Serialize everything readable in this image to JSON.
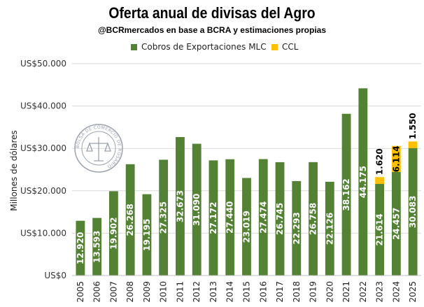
{
  "colors": {
    "series1": "#548235",
    "series2": "#FFC000",
    "grid": "#d9d9d9",
    "axis": "#bfbfbf"
  },
  "watermark": {
    "text": "BOLSA DE COMERCIO DE ROSARIO"
  },
  "chart_data": {
    "type": "bar",
    "stacked": true,
    "title": "Oferta anual de divisas del Agro",
    "subtitle": "@BCRmercados en base a BCRA y estimaciones propias",
    "ylabel": "Millones de dólares",
    "xlabel": "",
    "ylim": [
      0,
      50000
    ],
    "yticks": [
      0,
      10000,
      20000,
      30000,
      40000,
      50000
    ],
    "ytick_labels": [
      "US$0",
      "US$10.000",
      "US$20.000",
      "US$30.000",
      "US$40.000",
      "US$50.000"
    ],
    "grid": true,
    "legend_position": "top",
    "categories": [
      "2005",
      "2006",
      "2007",
      "2008",
      "2009",
      "2010",
      "2011",
      "2012",
      "2013",
      "2014",
      "2015",
      "2016",
      "2017",
      "2018",
      "2019",
      "2020",
      "2021",
      "2022",
      "2023",
      "2024",
      "2025"
    ],
    "series": [
      {
        "name": "Cobros de Exportaciones MLC",
        "values": [
          12920,
          13593,
          19902,
          26268,
          19195,
          27325,
          32673,
          31090,
          27172,
          27440,
          23019,
          27474,
          26745,
          22293,
          26758,
          22126,
          38162,
          44175,
          21614,
          24457,
          30083
        ],
        "labels": [
          "12.920",
          "13.593",
          "19.902",
          "26.268",
          "19.195",
          "27.325",
          "32.673",
          "31.090",
          "27.172",
          "27.440",
          "23.019",
          "27.474",
          "26.745",
          "22.293",
          "26.758",
          "22.126",
          "38.162",
          "44.175",
          "21.614",
          "24.457",
          "30.083"
        ]
      },
      {
        "name": "CCL",
        "values": [
          null,
          null,
          null,
          null,
          null,
          null,
          null,
          null,
          null,
          null,
          null,
          null,
          null,
          null,
          null,
          null,
          null,
          null,
          1620,
          6114,
          1550
        ],
        "labels": [
          "",
          "",
          "",
          "",
          "",
          "",
          "",
          "",
          "",
          "",
          "",
          "",
          "",
          "",
          "",
          "",
          "",
          "",
          "1.620",
          "6.114",
          "1.550"
        ]
      }
    ]
  }
}
